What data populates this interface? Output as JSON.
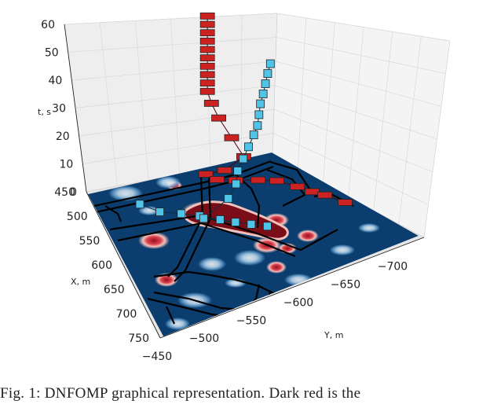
{
  "chart_data": {
    "type": "3d-trajectory",
    "title": "",
    "axes": {
      "t": {
        "label": "t, s",
        "ticks": [
          0,
          10,
          20,
          30,
          40,
          50,
          60
        ],
        "lim": [
          0,
          60
        ]
      },
      "x": {
        "label": "X, m",
        "ticks": [
          450,
          500,
          550,
          600,
          650,
          700,
          750
        ],
        "lim": [
          450,
          750
        ]
      },
      "y": {
        "label": "Y, m",
        "ticks": [
          -450,
          -500,
          -550,
          -600,
          -650,
          -700
        ],
        "lim": [
          -450,
          -730
        ]
      }
    },
    "colors": {
      "red_agent": "#cc2222",
      "blue_agent": "#4fc3e8",
      "map_background": "#0b3d6e",
      "obstacle": "#7a0d17"
    },
    "series": [
      {
        "color": "red",
        "points": [
          {
            "x": 470,
            "y": -620,
            "t": 58
          },
          {
            "x": 470,
            "y": -620,
            "t": 55
          },
          {
            "x": 470,
            "y": -620,
            "t": 52
          },
          {
            "x": 470,
            "y": -620,
            "t": 49
          },
          {
            "x": 470,
            "y": -620,
            "t": 46
          },
          {
            "x": 470,
            "y": -620,
            "t": 43
          },
          {
            "x": 470,
            "y": -620,
            "t": 40
          },
          {
            "x": 470,
            "y": -620,
            "t": 37
          },
          {
            "x": 470,
            "y": -620,
            "t": 34
          },
          {
            "x": 470,
            "y": -620,
            "t": 31
          },
          {
            "x": 480,
            "y": -620,
            "t": 28
          },
          {
            "x": 498,
            "y": -620,
            "t": 25
          },
          {
            "x": 530,
            "y": -620,
            "t": 22
          },
          {
            "x": 560,
            "y": -620,
            "t": 19
          },
          {
            "x": 560,
            "y": -595,
            "t": 16
          },
          {
            "x": 540,
            "y": -580,
            "t": 13
          },
          {
            "x": 540,
            "y": -595,
            "t": 10
          },
          {
            "x": 540,
            "y": -620,
            "t": 8
          },
          {
            "x": 540,
            "y": -650,
            "t": 6
          },
          {
            "x": 540,
            "y": -675,
            "t": 4
          },
          {
            "x": 560,
            "y": -690,
            "t": 3
          },
          {
            "x": 575,
            "y": -700,
            "t": 2
          },
          {
            "x": 585,
            "y": -710,
            "t": 1
          },
          {
            "x": 610,
            "y": -720,
            "t": 0
          }
        ]
      },
      {
        "color": "blue",
        "points": [
          {
            "x": 495,
            "y": -510,
            "t": 0
          },
          {
            "x": 525,
            "y": -525,
            "t": 1
          },
          {
            "x": 545,
            "y": -545,
            "t": 2
          },
          {
            "x": 565,
            "y": -560,
            "t": 3
          },
          {
            "x": 590,
            "y": -575,
            "t": 4
          },
          {
            "x": 610,
            "y": -585,
            "t": 5
          },
          {
            "x": 630,
            "y": -595,
            "t": 6
          },
          {
            "x": 650,
            "y": -605,
            "t": 7
          },
          {
            "x": 600,
            "y": -550,
            "t": 8
          },
          {
            "x": 580,
            "y": -590,
            "t": 9
          },
          {
            "x": 560,
            "y": -610,
            "t": 10
          },
          {
            "x": 545,
            "y": -620,
            "t": 12
          },
          {
            "x": 540,
            "y": -630,
            "t": 15
          },
          {
            "x": 535,
            "y": -640,
            "t": 18
          },
          {
            "x": 530,
            "y": -650,
            "t": 21
          },
          {
            "x": 530,
            "y": -655,
            "t": 24
          },
          {
            "x": 525,
            "y": -660,
            "t": 27
          },
          {
            "x": 520,
            "y": -665,
            "t": 30
          },
          {
            "x": 518,
            "y": -670,
            "t": 33
          },
          {
            "x": 515,
            "y": -675,
            "t": 36
          },
          {
            "x": 512,
            "y": -680,
            "t": 39
          },
          {
            "x": 510,
            "y": -685,
            "t": 42
          }
        ]
      }
    ]
  },
  "caption": "Fig. 1: DNFOMP graphical representation. Dark red is the"
}
